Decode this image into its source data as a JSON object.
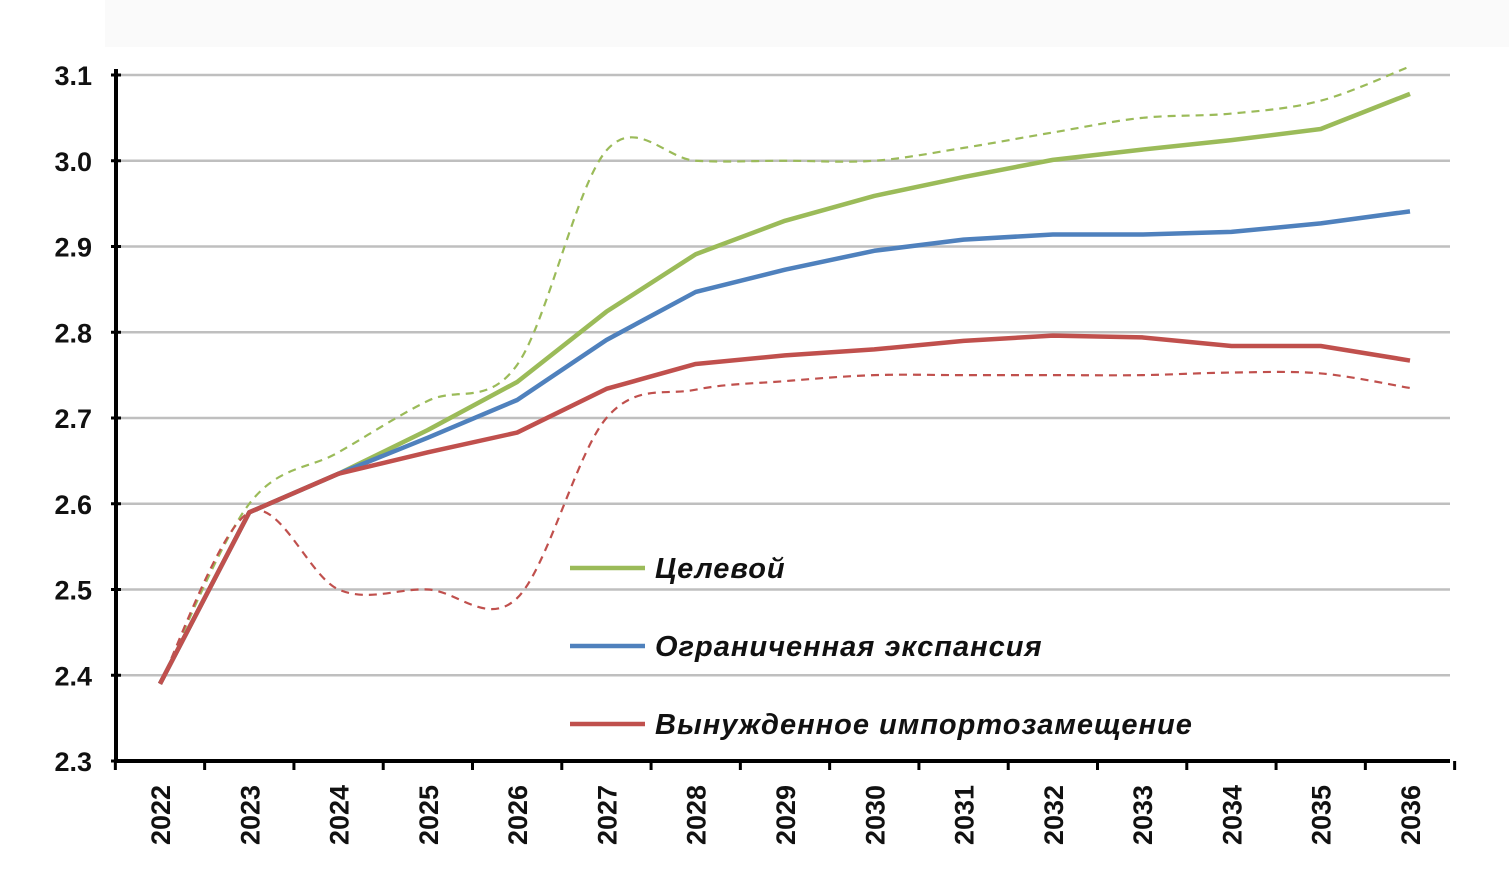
{
  "chart_data": {
    "type": "line",
    "title": "",
    "xlabel": "",
    "ylabel": "",
    "x": [
      "2022",
      "2023",
      "2024",
      "2025",
      "2026",
      "2027",
      "2028",
      "2029",
      "2030",
      "2031",
      "2032",
      "2033",
      "2034",
      "2035",
      "2036"
    ],
    "ylim": [
      2.3,
      3.1
    ],
    "yticks": [
      "2.3",
      "2.4",
      "2.5",
      "2.6",
      "2.7",
      "2.8",
      "2.9",
      "3.0",
      "3.1"
    ],
    "grid": true,
    "legend_position": "bottom-center",
    "series": [
      {
        "name": "Целевой",
        "color": "#9bbb59",
        "style": "solid",
        "in_legend": true,
        "values": [
          2.39,
          2.59,
          2.635,
          2.686,
          2.742,
          2.824,
          2.891,
          2.93,
          2.959,
          2.981,
          3.001,
          3.013,
          3.024,
          3.037,
          3.078
        ]
      },
      {
        "name": "Ограниченная экспансия",
        "color": "#4f81bd",
        "style": "solid",
        "in_legend": true,
        "values": [
          2.39,
          2.59,
          2.635,
          2.677,
          2.721,
          2.791,
          2.847,
          2.873,
          2.895,
          2.908,
          2.914,
          2.914,
          2.917,
          2.927,
          2.941
        ]
      },
      {
        "name": "Вынужденное импортозамещение",
        "color": "#c0504d",
        "style": "solid",
        "in_legend": true,
        "values": [
          2.39,
          2.59,
          2.635,
          2.66,
          2.683,
          2.734,
          2.763,
          2.773,
          2.78,
          2.79,
          2.796,
          2.794,
          2.784,
          2.784,
          2.767
        ]
      },
      {
        "name": "",
        "color": "#9bbb59",
        "style": "dashed",
        "in_legend": false,
        "values": [
          2.39,
          2.6,
          2.66,
          2.72,
          2.762,
          3.012,
          3.0,
          3.0,
          3.0,
          3.015,
          3.033,
          3.05,
          3.055,
          3.07,
          3.11
        ]
      },
      {
        "name": "",
        "color": "#c0504d",
        "style": "dashed",
        "in_legend": false,
        "values": [
          2.39,
          2.59,
          2.5,
          2.5,
          2.49,
          2.7,
          2.733,
          2.743,
          2.75,
          2.75,
          2.75,
          2.75,
          2.753,
          2.752,
          2.735
        ]
      }
    ]
  }
}
